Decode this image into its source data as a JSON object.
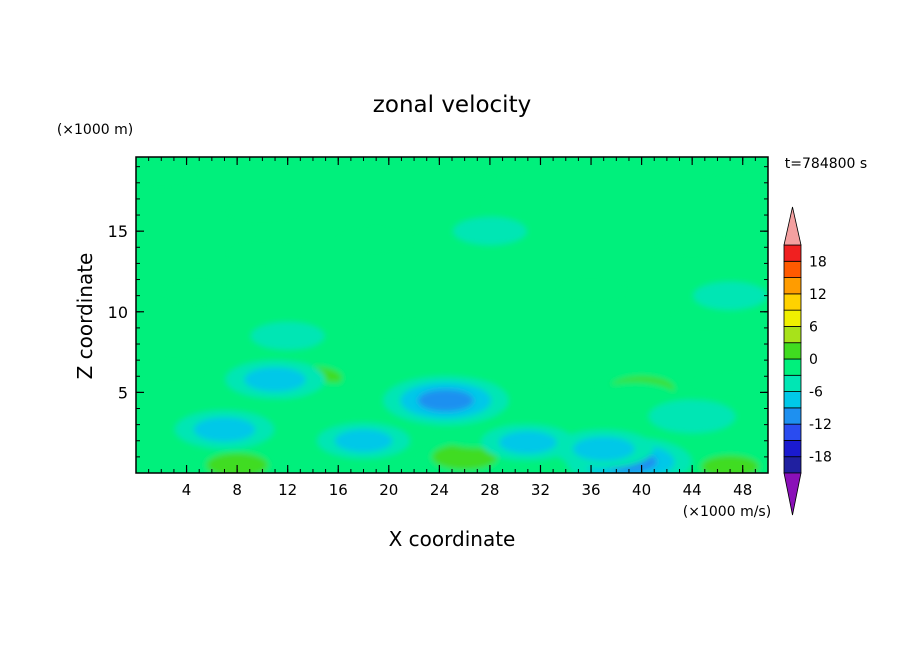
{
  "chart_data": {
    "type": "heatmap",
    "title": "zonal velocity",
    "xlabel": "X coordinate",
    "ylabel": "Z coordinate",
    "x_unit": "(×1000 m/s)",
    "y_unit": "(×1000 m)",
    "time_label": "t=784800 s",
    "xlim": [
      0,
      50
    ],
    "ylim": [
      0,
      19.6
    ],
    "x_ticks": [
      "4",
      "8",
      "12",
      "16",
      "20",
      "24",
      "28",
      "32",
      "36",
      "40",
      "44",
      "48"
    ],
    "y_ticks": [
      "5",
      "10",
      "15"
    ],
    "colorbar": {
      "levels": [
        -21,
        -18,
        -15,
        -12,
        -9,
        -6,
        -3,
        0,
        3,
        6,
        9,
        12,
        15,
        18,
        21
      ],
      "tick_labels": [
        "18",
        "12",
        "6",
        "0",
        "-6",
        "-12",
        "-18"
      ],
      "colors": [
        "#5a1a9e",
        "#2020a0",
        "#1a1acf",
        "#2a4cf0",
        "#1e90f0",
        "#00c8e8",
        "#00e6b4",
        "#00f07c",
        "#40dc20",
        "#a8e21a",
        "#f0f000",
        "#ffd200",
        "#ff9c00",
        "#ff5a00",
        "#f02020",
        "#e01a1a"
      ],
      "under_color": "#8a10b8",
      "over_color": "#f4a0a0"
    },
    "field_background": 0,
    "features": [
      {
        "x": 40,
        "z": 5.2,
        "value": 6
      },
      {
        "x": 39.5,
        "z": 4.6,
        "value": 3
      },
      {
        "x": 14,
        "z": 5.9,
        "value": 4
      },
      {
        "x": 15,
        "z": 4.6,
        "value": 3
      },
      {
        "x": 26,
        "z": 1.0,
        "value": 6
      },
      {
        "x": 27,
        "z": 2.6,
        "value": 3
      },
      {
        "x": 8,
        "z": 0.5,
        "value": 5
      },
      {
        "x": 47,
        "z": 0.4,
        "value": 4
      },
      {
        "x": 19,
        "z": 14.5,
        "value": 3
      },
      {
        "x": 10,
        "z": 13.6,
        "value": 2
      },
      {
        "x": 30,
        "z": 4.8,
        "value": 3
      },
      {
        "x": 25,
        "z": 4.7,
        "value": -6
      },
      {
        "x": 24.5,
        "z": 4.5,
        "value": -9
      },
      {
        "x": 39,
        "z": 0.7,
        "value": -9
      },
      {
        "x": 37,
        "z": 1.5,
        "value": -5
      },
      {
        "x": 31,
        "z": 1.9,
        "value": -4
      },
      {
        "x": 18,
        "z": 2.0,
        "value": -4
      },
      {
        "x": 7,
        "z": 2.7,
        "value": -5
      },
      {
        "x": 11,
        "z": 5.8,
        "value": -5
      },
      {
        "x": 44,
        "z": 3.5,
        "value": -3
      },
      {
        "x": 10,
        "z": 16.2,
        "value": 2
      },
      {
        "x": 30,
        "z": 16.8,
        "value": 2
      },
      {
        "x": 5,
        "z": 11.2,
        "value": 2
      },
      {
        "x": 36,
        "z": 11.4,
        "value": 2
      },
      {
        "x": 20,
        "z": 9.0,
        "value": 2
      },
      {
        "x": 45,
        "z": 9.5,
        "value": 2
      },
      {
        "x": 44,
        "z": 14.2,
        "value": 2
      },
      {
        "x": 2,
        "z": 18.5,
        "value": 2
      },
      {
        "x": 48,
        "z": 18.0,
        "value": 2
      },
      {
        "x": 28,
        "z": 19.2,
        "value": 2
      },
      {
        "x": 47,
        "z": 5.5,
        "value": 2
      },
      {
        "x": 3,
        "z": 6.4,
        "value": 2
      },
      {
        "x": 47,
        "z": 11.0,
        "value": -1
      },
      {
        "x": 28,
        "z": 15.0,
        "value": -1
      },
      {
        "x": 12,
        "z": 8.5,
        "value": -1
      }
    ]
  }
}
